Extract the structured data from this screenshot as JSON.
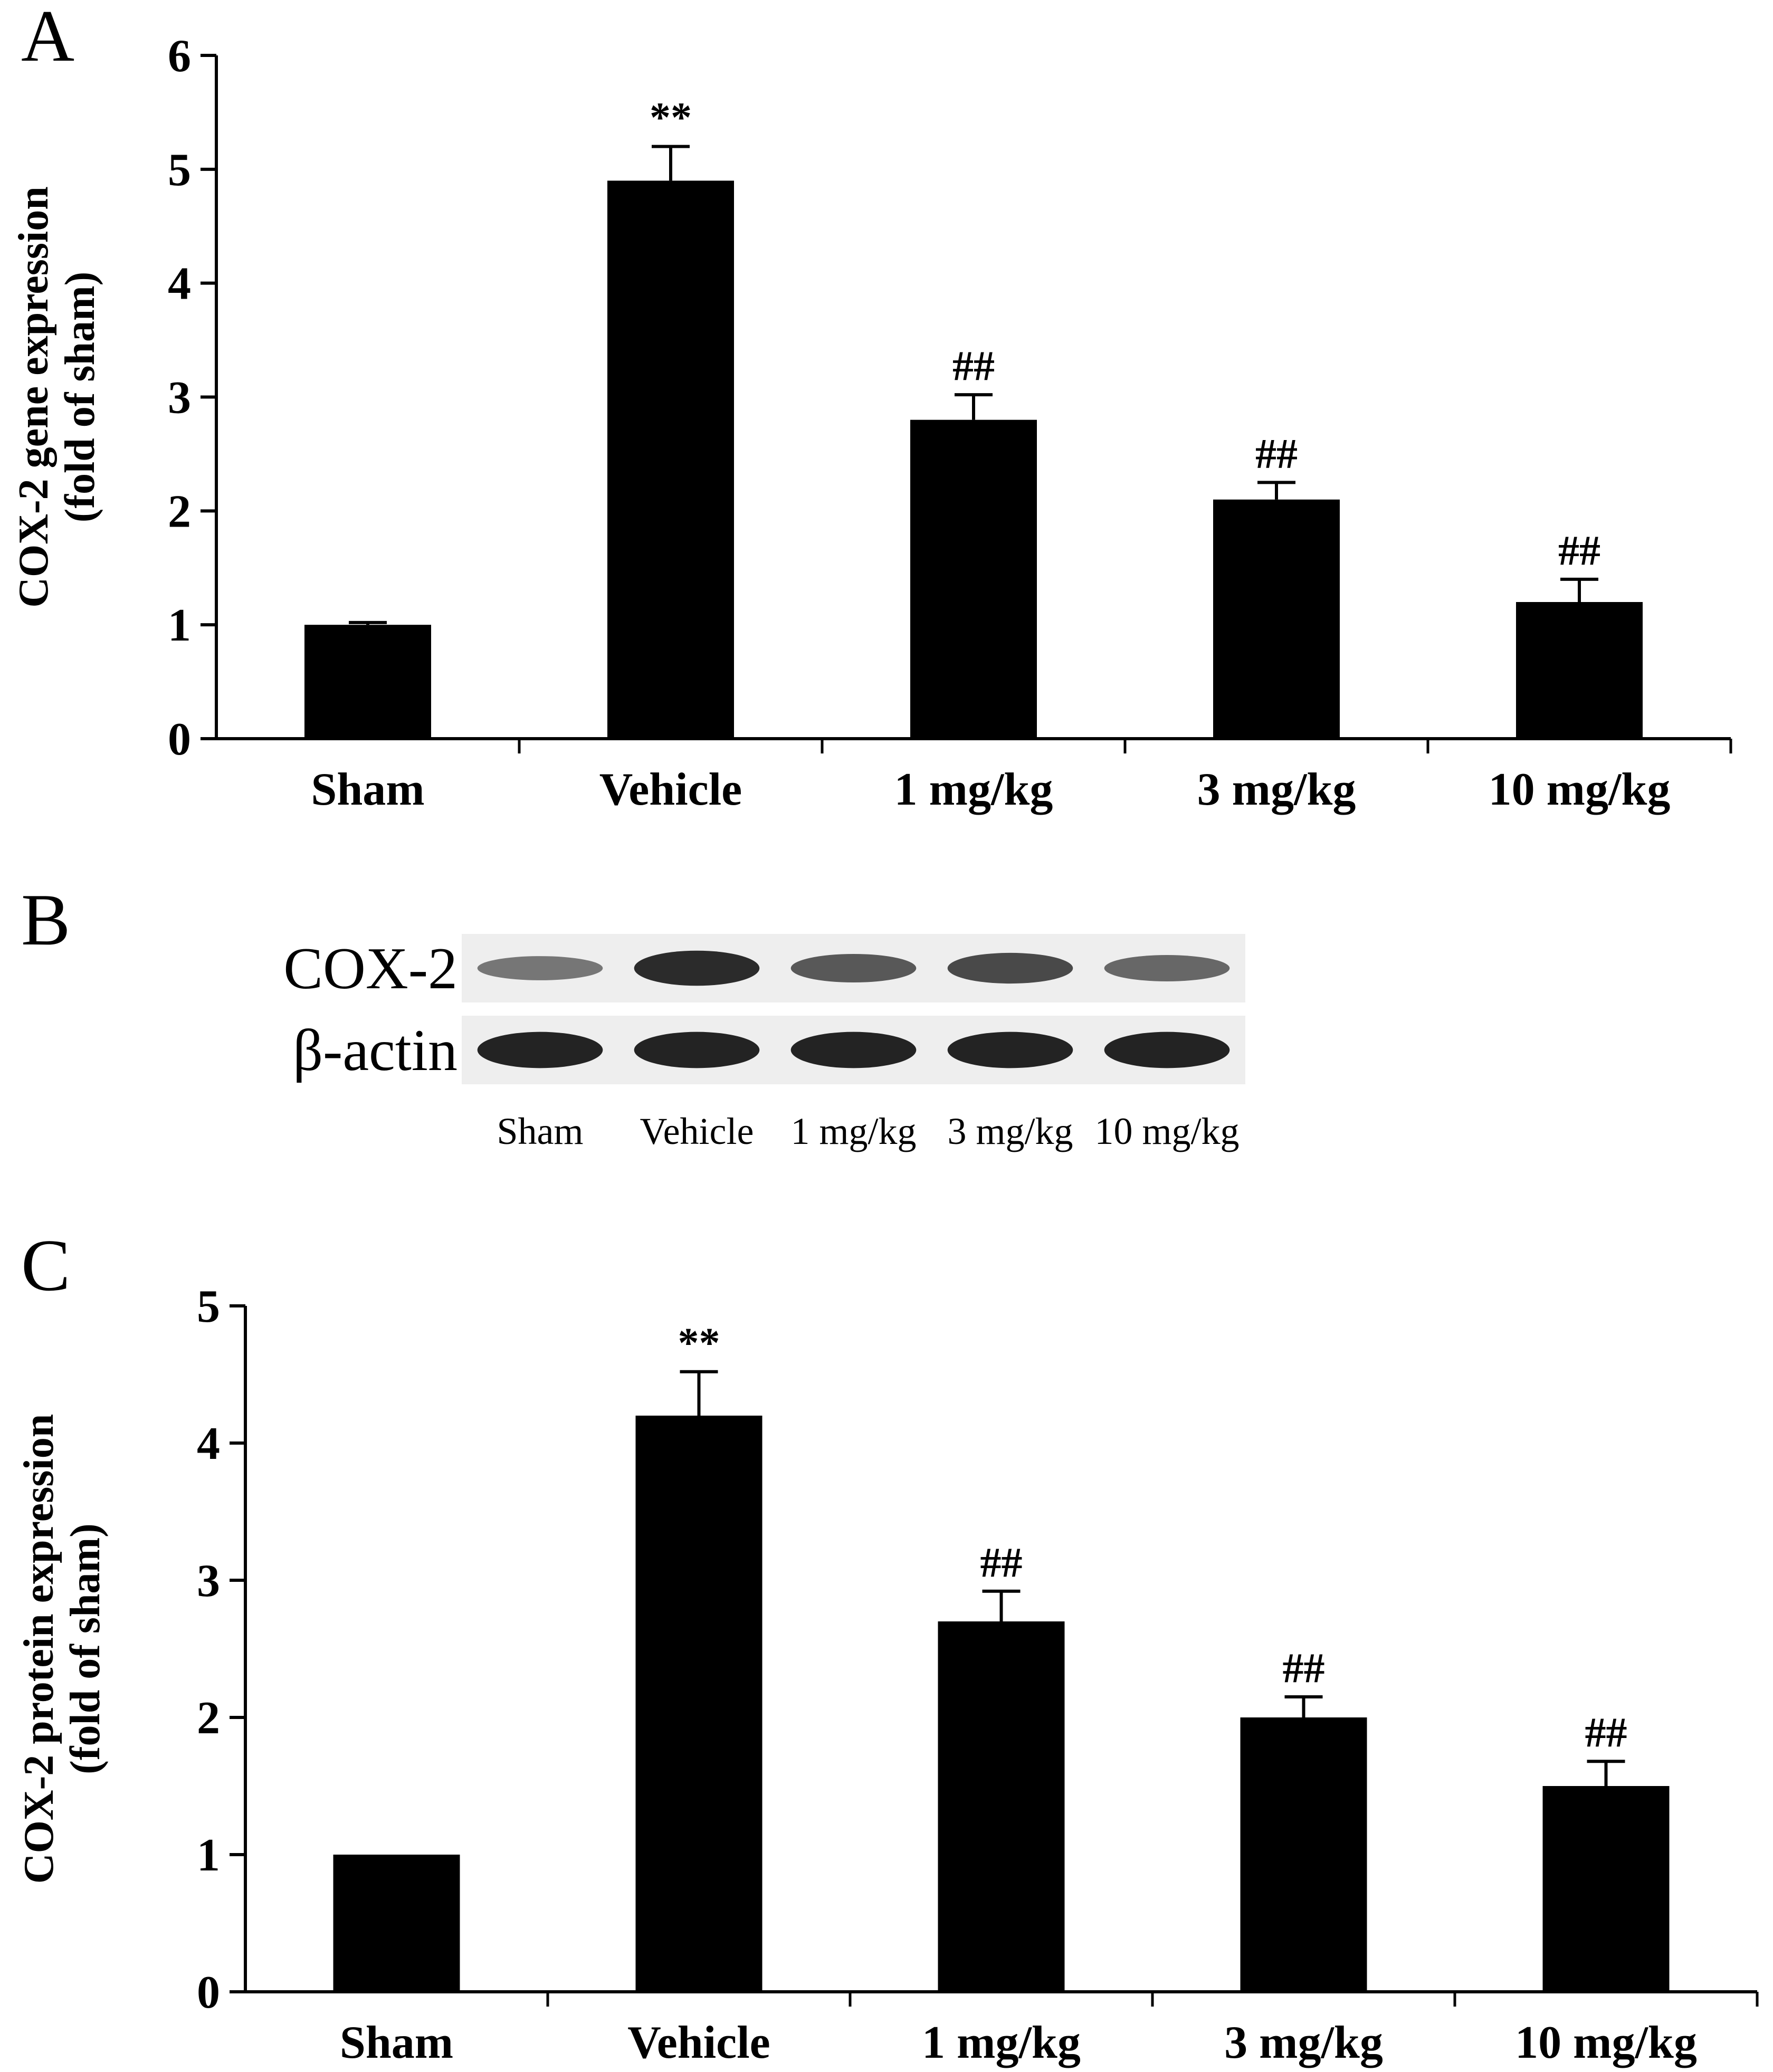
{
  "panels": {
    "a": "A",
    "b": "B",
    "c": "C"
  },
  "chart_data": [
    {
      "panel": "A",
      "type": "bar",
      "categories": [
        "Sham",
        "Vehicle",
        "1 mg/kg",
        "3 mg/kg",
        "10 mg/kg"
      ],
      "values": [
        1.0,
        4.9,
        2.8,
        2.1,
        1.2
      ],
      "errors": [
        0.02,
        0.3,
        0.22,
        0.15,
        0.2
      ],
      "significance": [
        "",
        "**",
        "##",
        "##",
        "##"
      ],
      "ylabel_lines": [
        "COX-2 gene expression",
        "(fold of sham)"
      ],
      "xlabel": "",
      "ylim": [
        0,
        6
      ],
      "yticks": [
        0,
        1,
        2,
        3,
        4,
        5,
        6
      ],
      "bar_color": "#000000",
      "grid": false,
      "legend": "none"
    },
    {
      "panel": "C",
      "type": "bar",
      "categories": [
        "Sham",
        "Vehicle",
        "1 mg/kg",
        "3 mg/kg",
        "10 mg/kg"
      ],
      "values": [
        1.0,
        4.2,
        2.7,
        2.0,
        1.5
      ],
      "errors": [
        0,
        0.32,
        0.22,
        0.15,
        0.18
      ],
      "significance": [
        "",
        "**",
        "##",
        "##",
        "##"
      ],
      "ylabel_lines": [
        "COX-2 protein expression",
        "(fold of sham)"
      ],
      "xlabel": "",
      "ylim": [
        0,
        5
      ],
      "yticks": [
        0,
        1,
        2,
        3,
        4,
        5
      ],
      "bar_color": "#000000",
      "grid": false,
      "legend": "none"
    }
  ],
  "blot": {
    "rows": [
      "COX-2",
      "β-actin"
    ],
    "lanes": [
      "Sham",
      "Vehicle",
      "1 mg/kg",
      "3 mg/kg",
      "10 mg/kg"
    ],
    "band_intensity": {
      "COX-2": [
        0.35,
        0.85,
        0.55,
        0.65,
        0.45
      ],
      "β-actin": [
        0.9,
        0.9,
        0.9,
        0.9,
        0.9
      ]
    }
  }
}
